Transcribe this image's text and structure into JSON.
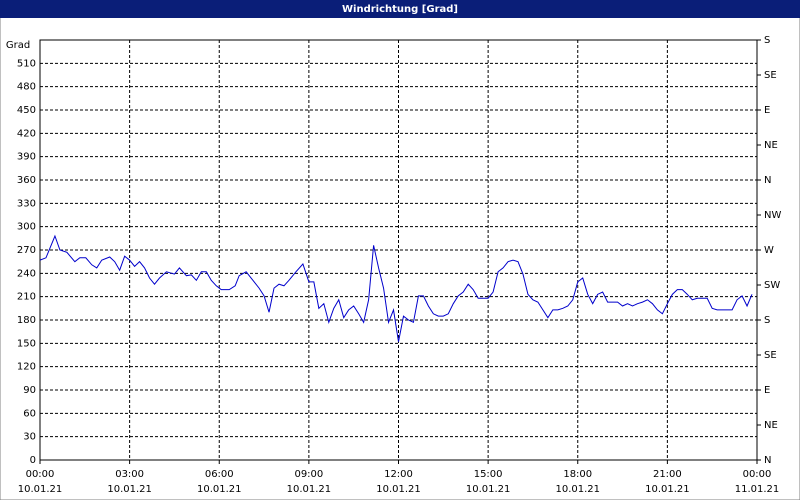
{
  "chart_data": {
    "type": "line",
    "title": "Windrichtung [Grad]",
    "ylabel": "Grad",
    "x": [
      0,
      12,
      30,
      40,
      54,
      70,
      80,
      92,
      104,
      114,
      124,
      140,
      150,
      160,
      170,
      180,
      190,
      200,
      210,
      220,
      230,
      240,
      254,
      270,
      280,
      294,
      304,
      314,
      324,
      334,
      344,
      354,
      364,
      380,
      392,
      400,
      414,
      424,
      440,
      450,
      460,
      470,
      480,
      490,
      500,
      514,
      528,
      540,
      550,
      560,
      570,
      580,
      590,
      600,
      610,
      620,
      630,
      640,
      650,
      660,
      670,
      680,
      690,
      700,
      710,
      720,
      730,
      740,
      750,
      760,
      770,
      780,
      790,
      800,
      810,
      820,
      830,
      840,
      850,
      860,
      870,
      880,
      890,
      900,
      910,
      920,
      930,
      940,
      950,
      960,
      970,
      980,
      990,
      1000,
      1010,
      1020,
      1030,
      1040,
      1050,
      1060,
      1070,
      1080,
      1090,
      1100,
      1110,
      1120,
      1130,
      1140,
      1150,
      1160,
      1170,
      1180,
      1190,
      1200,
      1210,
      1220,
      1230,
      1240,
      1250,
      1260,
      1270,
      1280,
      1290,
      1300,
      1310,
      1320,
      1330,
      1340,
      1350,
      1360,
      1370,
      1380,
      1390,
      1400,
      1410,
      1420,
      1430
    ],
    "series": [
      {
        "name": "Windrichtung",
        "color": "#0000cc",
        "values": [
          257,
          260,
          288,
          270,
          267,
          255,
          260,
          260,
          251,
          247,
          257,
          261,
          255,
          244,
          262,
          257,
          249,
          255,
          247,
          234,
          226,
          234,
          242,
          239,
          247,
          237,
          238,
          231,
          242,
          242,
          231,
          224,
          219,
          219,
          224,
          237,
          242,
          234,
          221,
          211,
          190,
          221,
          226,
          224,
          231,
          242,
          252,
          229,
          229,
          195,
          201,
          177,
          195,
          206,
          183,
          193,
          198,
          188,
          177,
          206,
          276,
          247,
          221,
          177,
          193,
          152,
          185,
          180,
          177,
          211,
          211,
          198,
          188,
          185,
          185,
          188,
          201,
          211,
          216,
          226,
          219,
          208,
          208,
          208,
          216,
          242,
          247,
          255,
          257,
          255,
          239,
          213,
          206,
          203,
          193,
          183,
          193,
          193,
          195,
          198,
          206,
          229,
          234,
          213,
          201,
          213,
          216,
          203,
          203,
          203,
          198,
          201,
          198,
          201,
          203,
          206,
          201,
          193,
          188,
          201,
          213,
          219,
          219,
          213,
          206,
          208,
          208,
          208,
          195,
          193,
          193,
          193,
          193,
          206,
          211,
          198,
          213
        ]
      }
    ],
    "xlim": [
      0,
      1440
    ],
    "xticks": [
      {
        "value": 0,
        "label": "00:00",
        "date": "10.01.21"
      },
      {
        "value": 180,
        "label": "03:00",
        "date": "10.01.21"
      },
      {
        "value": 360,
        "label": "06:00",
        "date": "10.01.21"
      },
      {
        "value": 540,
        "label": "09:00",
        "date": "10.01.21"
      },
      {
        "value": 720,
        "label": "12:00",
        "date": "10.01.21"
      },
      {
        "value": 900,
        "label": "15:00",
        "date": "10.01.21"
      },
      {
        "value": 1080,
        "label": "18:00",
        "date": "10.01.21"
      },
      {
        "value": 1260,
        "label": "21:00",
        "date": "10.01.21"
      },
      {
        "value": 1440,
        "label": "00:00",
        "date": "11.01.21"
      }
    ],
    "ylim": [
      0,
      540
    ],
    "yticks": [
      0,
      30,
      60,
      90,
      120,
      150,
      180,
      210,
      240,
      270,
      300,
      330,
      360,
      390,
      420,
      450,
      480,
      510
    ],
    "y2lim": [
      0,
      540
    ],
    "y2ticks": [
      {
        "value": 0,
        "label": "N"
      },
      {
        "value": 45,
        "label": "NE"
      },
      {
        "value": 90,
        "label": "E"
      },
      {
        "value": 135,
        "label": "SE"
      },
      {
        "value": 180,
        "label": "S"
      },
      {
        "value": 225,
        "label": "SW"
      },
      {
        "value": 270,
        "label": "W"
      },
      {
        "value": 315,
        "label": "NW"
      },
      {
        "value": 360,
        "label": "N"
      },
      {
        "value": 405,
        "label": "NE"
      },
      {
        "value": 450,
        "label": "E"
      },
      {
        "value": 495,
        "label": "SE"
      },
      {
        "value": 540,
        "label": "S"
      }
    ],
    "grid": true
  }
}
